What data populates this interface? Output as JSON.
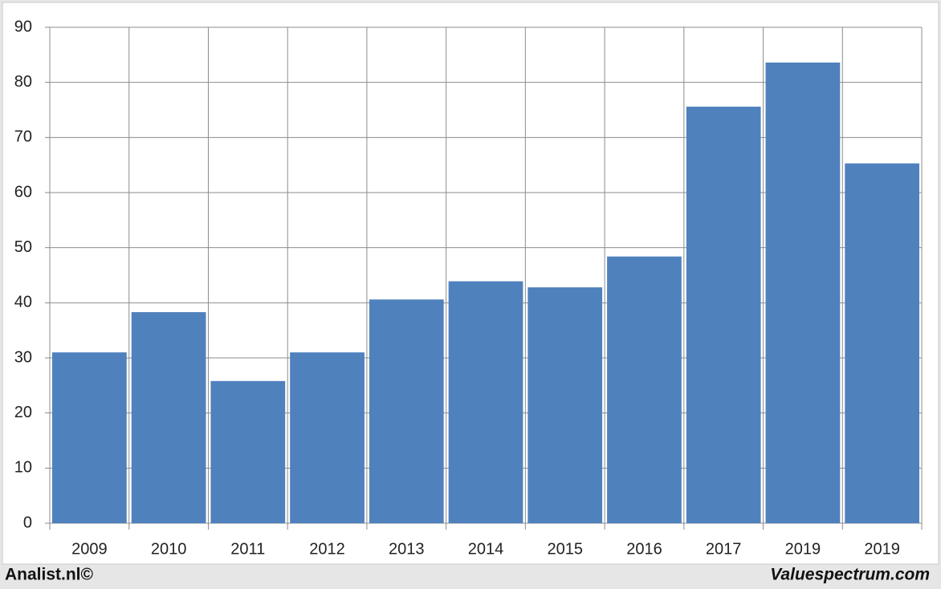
{
  "chart_data": {
    "type": "bar",
    "categories": [
      "2009",
      "2010",
      "2011",
      "2012",
      "2013",
      "2014",
      "2015",
      "2016",
      "2017",
      "2019",
      "2019"
    ],
    "values": [
      31,
      38.3,
      25.8,
      31,
      40.6,
      43.9,
      42.8,
      48.4,
      75.6,
      83.6,
      65.3
    ],
    "color": "#4f81bd",
    "ylim": [
      0,
      90
    ],
    "yticks": [
      0,
      10,
      20,
      30,
      40,
      50,
      60,
      70,
      80,
      90
    ],
    "grid": true,
    "vertical_grid": true,
    "annotations": [
      "Analist.nl©",
      "Valuespectrum.com"
    ]
  }
}
